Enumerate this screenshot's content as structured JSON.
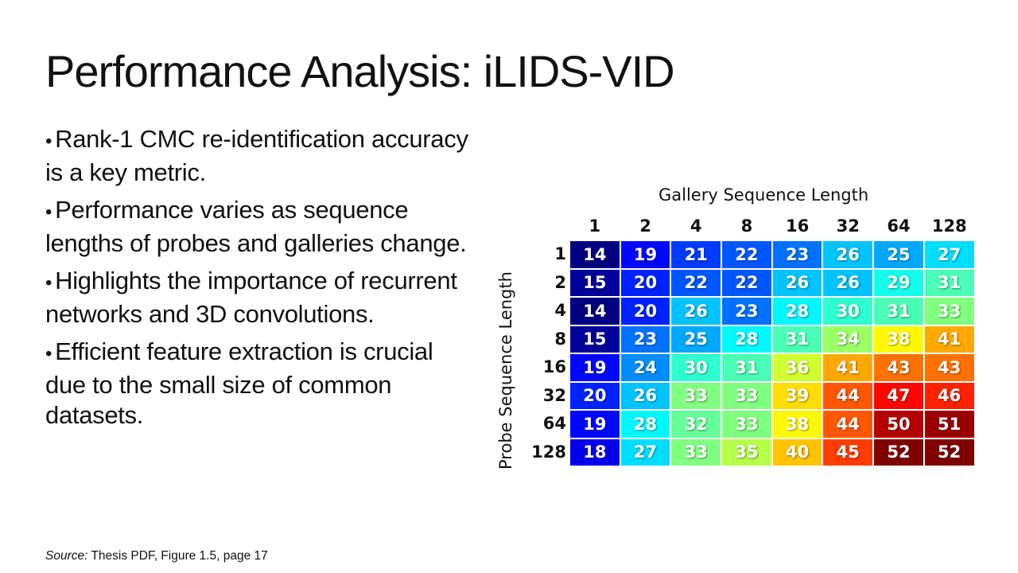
{
  "slide": {
    "title": "Performance Analysis: iLIDS-VID",
    "bullets": [
      {
        "bullet": "•",
        "text": "Rank-1 CMC re-identification accuracy is a key metric."
      },
      {
        "bullet": "•",
        "text": "Performance varies as sequence lengths of probes and galleries change."
      },
      {
        "bullet": "•",
        "text": "Highlights the importance of recurrent networks and 3D convolutions."
      },
      {
        "bullet": "•",
        "text": "Efficient feature extraction is crucial due to the small size of common datasets."
      }
    ],
    "source_label": "Source:",
    "source_text": " Thesis PDF, Figure 1.5, page 17"
  },
  "chart_data": {
    "type": "heatmap",
    "title": "",
    "xlabel": "Gallery Sequence Length",
    "ylabel": "Probe Sequence Length",
    "x": [
      "1",
      "2",
      "4",
      "8",
      "16",
      "32",
      "64",
      "128"
    ],
    "y": [
      "1",
      "2",
      "4",
      "8",
      "16",
      "32",
      "64",
      "128"
    ],
    "values": [
      [
        14,
        19,
        21,
        22,
        23,
        26,
        25,
        27
      ],
      [
        15,
        20,
        22,
        22,
        26,
        26,
        29,
        31
      ],
      [
        14,
        20,
        26,
        23,
        28,
        30,
        31,
        33
      ],
      [
        15,
        23,
        25,
        28,
        31,
        34,
        38,
        41
      ],
      [
        19,
        24,
        30,
        31,
        36,
        41,
        43,
        43
      ],
      [
        20,
        26,
        33,
        33,
        39,
        44,
        47,
        46
      ],
      [
        19,
        28,
        32,
        33,
        38,
        44,
        50,
        51
      ],
      [
        18,
        27,
        33,
        35,
        40,
        45,
        52,
        52
      ]
    ],
    "colormap": "jet",
    "value_range": [
      14,
      52
    ],
    "grid": false,
    "legend": "none"
  }
}
